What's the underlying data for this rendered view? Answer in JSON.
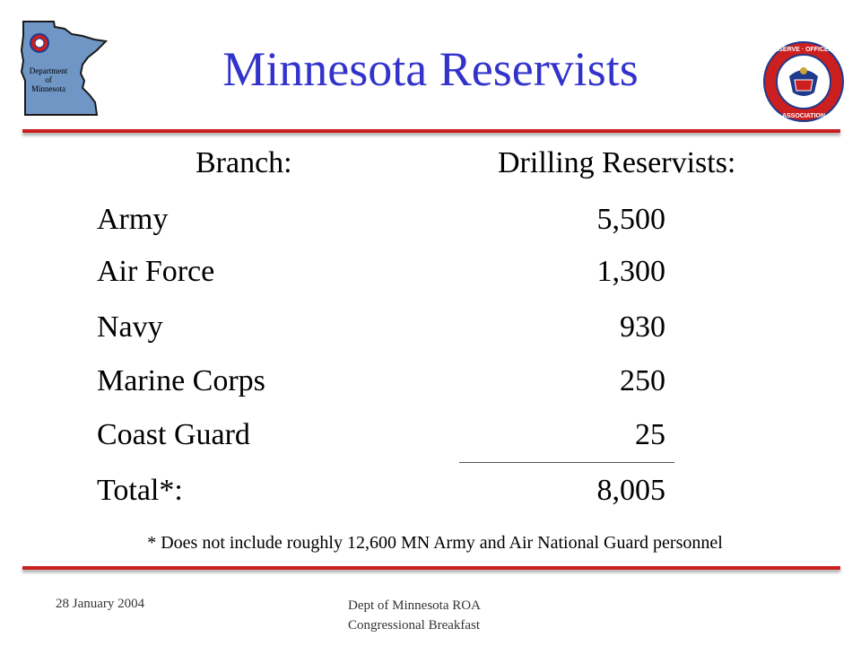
{
  "slide": {
    "title": "Minnesota Reservists"
  },
  "logos": {
    "left_emblem_text": [
      "Department",
      "of",
      "Minnesota"
    ],
    "right_seal_text": "RESERVE OFFICERS ASSOCIATION",
    "colors": {
      "state_fill": "#6f96c5",
      "seal_red": "#cc1f1f",
      "seal_blue": "#1f3a8c"
    }
  },
  "table": {
    "headers": {
      "branch": "Branch:",
      "count": "Drilling Reservists:"
    },
    "rows": [
      {
        "branch": "Army",
        "count": "5,500"
      },
      {
        "branch": "Air Force",
        "count": "1,300"
      },
      {
        "branch": "Navy",
        "count": "930"
      },
      {
        "branch": "Marine Corps",
        "count": "250"
      },
      {
        "branch": "Coast Guard",
        "count": "25"
      }
    ],
    "total": {
      "branch": "Total*:",
      "count": "8,005"
    }
  },
  "footnote": "* Does not include roughly 12,600 MN Army and Air National Guard personnel",
  "footer": {
    "date": "28 January 2004",
    "event_line1": "Dept of Minnesota ROA",
    "event_line2": "Congressional Breakfast"
  },
  "colors": {
    "title": "#3333cc",
    "rule": "#cc1f1f",
    "text": "#000000"
  }
}
